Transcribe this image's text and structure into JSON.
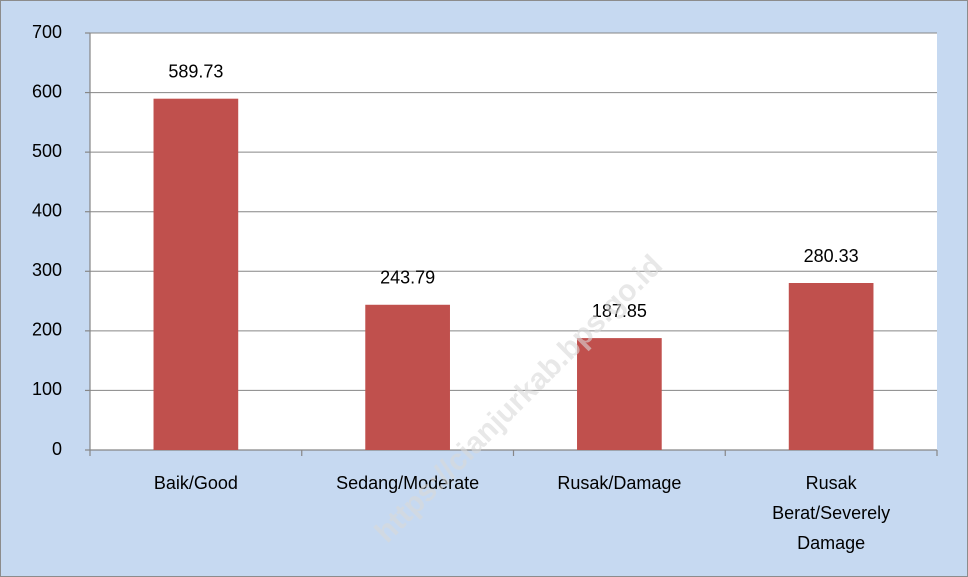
{
  "chart_data": {
    "type": "bar",
    "categories": [
      "Baik/Good",
      "Sedang/Moderate",
      "Rusak/Damage",
      "Rusak Berat/Severely Damage"
    ],
    "values": [
      589.73,
      243.79,
      187.85,
      280.33
    ],
    "color": "#c0504d",
    "ylim": [
      0,
      700
    ],
    "yticks": [
      0,
      100,
      200,
      300,
      400,
      500,
      600,
      700
    ],
    "grid": true,
    "watermark": "https://cianjurkab.bps.go.id"
  }
}
